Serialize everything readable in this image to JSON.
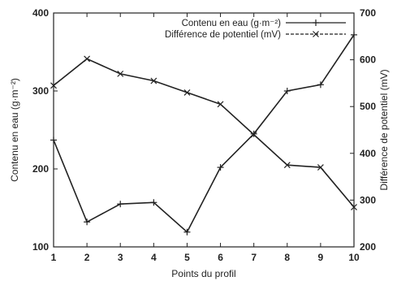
{
  "chart_data": {
    "type": "line",
    "x": [
      1,
      2,
      3,
      4,
      5,
      6,
      7,
      8,
      9,
      10
    ],
    "xlabel": "Points du profil",
    "ylabel_left": "Contenu en eau (g·m⁻²)",
    "ylabel_right": "Différence de potentiel (mV)",
    "ylim_left": [
      100,
      400
    ],
    "ylim_right": [
      200,
      700
    ],
    "xticks": [
      "1",
      "2",
      "3",
      "4",
      "5",
      "6",
      "7",
      "8",
      "9",
      "10"
    ],
    "yticks_left": [
      "100",
      "200",
      "300",
      "400"
    ],
    "yticks_right": [
      "200",
      "300",
      "400",
      "500",
      "600",
      "700"
    ],
    "grid": false,
    "legend_position": "top-right",
    "series": [
      {
        "name": "Contenu en eau (g·m⁻²)",
        "axis": "left",
        "marker": "plus",
        "color": "#222222",
        "values": [
          237,
          132,
          155,
          157,
          119,
          202,
          245,
          300,
          308,
          372
        ]
      },
      {
        "name": "Différence de potentiel (mV)",
        "axis": "right",
        "marker": "x",
        "color": "#222222",
        "values": [
          545,
          602,
          570,
          555,
          530,
          505,
          440,
          375,
          370,
          285
        ]
      }
    ]
  }
}
